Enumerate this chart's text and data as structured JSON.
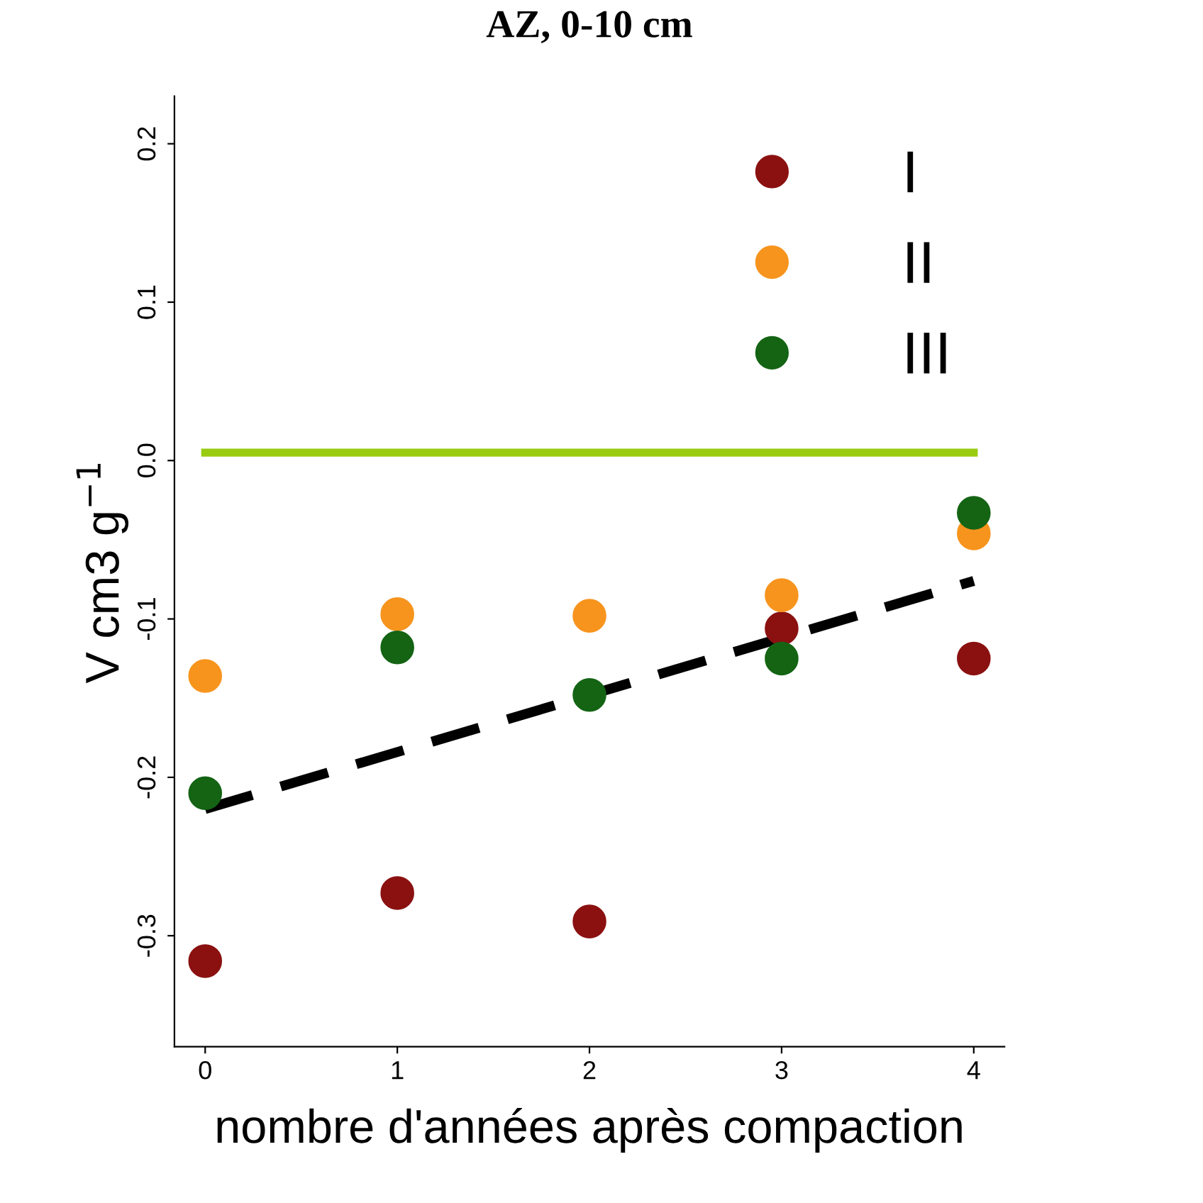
{
  "chart_data": {
    "type": "scatter",
    "title": "AZ, 0-10 cm",
    "xlabel": "nombre d'années après compaction",
    "ylabel": "V cm3 g$^{−1}$",
    "x": [
      0,
      1,
      2,
      3,
      4
    ],
    "series": [
      {
        "name": "I",
        "color": "#8b1111",
        "values": [
          -0.316,
          -0.273,
          -0.291,
          -0.106,
          -0.125
        ]
      },
      {
        "name": "II",
        "color": "#f7941d",
        "values": [
          -0.136,
          -0.097,
          -0.098,
          -0.085,
          -0.046
        ]
      },
      {
        "name": "III",
        "color": "#146414",
        "values": [
          -0.21,
          -0.118,
          -0.148,
          -0.125,
          -0.033
        ]
      },
      {
        "type": "line",
        "x": [
          0,
          4
        ],
        "values": [
          -0.22,
          -0.076
        ],
        "color": "#000000",
        "line_style": "dashed",
        "marker": "none"
      }
    ],
    "ref_lines": [
      {
        "axis": "y",
        "value": 0.005,
        "color": "#99cc11",
        "line_style": "solid"
      }
    ],
    "xlim": [
      -0.16,
      4.16
    ],
    "ylim": [
      -0.37,
      0.23
    ],
    "xticks": [
      0,
      1,
      2,
      3,
      4
    ],
    "yticks": [
      -0.3,
      -0.2,
      -0.1,
      {
        "value": 0,
        "label": "0.0"
      },
      0.1,
      0.2
    ],
    "marker": "circle",
    "legend": "top right",
    "grid": false
  }
}
